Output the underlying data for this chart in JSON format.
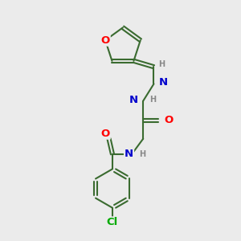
{
  "bg_color": "#ebebeb",
  "bond_color": "#3a6b30",
  "bond_width": 1.5,
  "atom_colors": {
    "O": "#ff0000",
    "N": "#0000cc",
    "Cl": "#00aa00",
    "C": "#3a6b30",
    "H": "#888888"
  },
  "font_size": 8.5,
  "fig_size": [
    3.0,
    3.0
  ],
  "dpi": 100
}
